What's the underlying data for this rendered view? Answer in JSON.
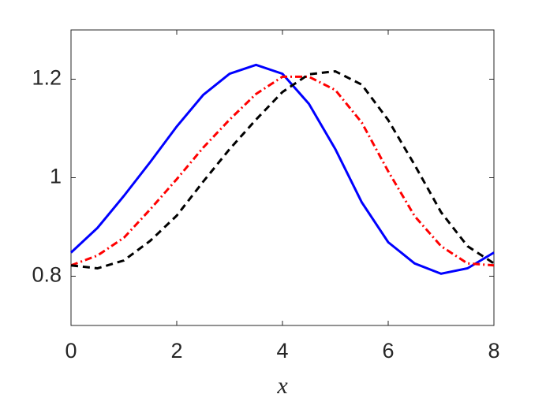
{
  "chart_data": {
    "type": "line",
    "xlabel": "x",
    "x": [
      0,
      0.5,
      1,
      1.5,
      2,
      2.5,
      3,
      3.5,
      4,
      4.5,
      5,
      5.5,
      6,
      6.5,
      7,
      7.5,
      8
    ],
    "series": [
      {
        "color": "#0000ff",
        "dash": "solid",
        "values": [
          0.848,
          0.898,
          0.963,
          1.032,
          1.104,
          1.168,
          1.211,
          1.229,
          1.211,
          1.15,
          1.058,
          0.95,
          0.869,
          0.826,
          0.805,
          0.816,
          0.848
        ]
      },
      {
        "color": "#ff0000",
        "dash": "dashdot",
        "values": [
          0.822,
          0.842,
          0.878,
          0.936,
          0.997,
          1.061,
          1.118,
          1.17,
          1.205,
          1.205,
          1.178,
          1.112,
          1.013,
          0.922,
          0.861,
          0.826,
          0.822
        ]
      },
      {
        "color": "#000000",
        "dash": "dashed",
        "values": [
          0.822,
          0.816,
          0.832,
          0.872,
          0.923,
          0.992,
          1.058,
          1.118,
          1.174,
          1.21,
          1.216,
          1.189,
          1.117,
          1.026,
          0.93,
          0.861,
          0.826
        ]
      }
    ],
    "xlim": [
      0,
      8
    ],
    "xticks": [
      0,
      2,
      4,
      6,
      8
    ],
    "ylim": [
      0.7,
      1.3
    ],
    "yticks": [
      0.8,
      1,
      1.2
    ],
    "grid": false
  }
}
